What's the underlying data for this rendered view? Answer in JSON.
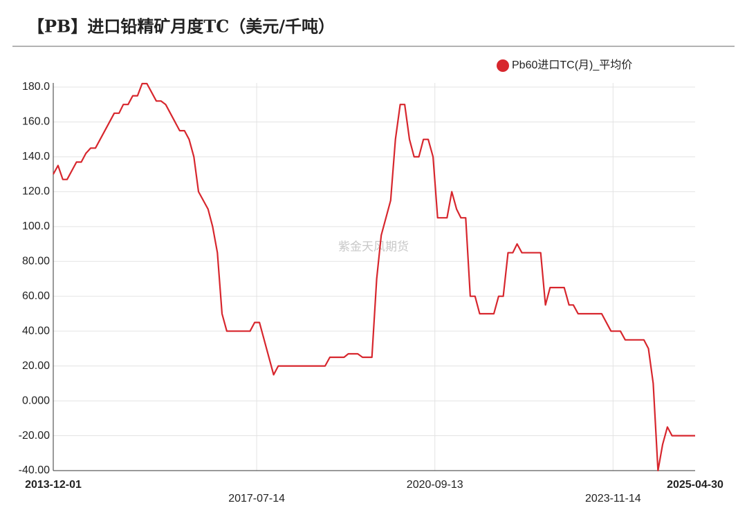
{
  "chart_data": {
    "type": "line",
    "title": "【PB】进口铅精矿月度TC（美元/千吨）",
    "watermark": "紫金天风期货",
    "x": [
      "2013-12-01",
      "2014-01-01",
      "2014-02-01",
      "2014-03-01",
      "2014-05-01",
      "2014-06-01",
      "2014-07-01",
      "2014-08-01",
      "2014-09-01",
      "2015-01-01",
      "2015-02-01",
      "2015-03-01",
      "2015-04-01",
      "2015-05-01",
      "2015-06-01",
      "2015-07-01",
      "2015-08-01",
      "2015-10-01",
      "2015-11-01",
      "2015-12-01",
      "2016-03-01",
      "2016-04-01",
      "2016-05-01",
      "2016-06-01",
      "2016-07-01",
      "2016-09-01",
      "2016-10-01",
      "2016-11-01",
      "2016-12-01",
      "2017-01-01",
      "2017-06-01",
      "2017-07-01",
      "2017-08-01",
      "2017-11-01",
      "2017-12-01",
      "2018-10-01",
      "2018-11-01",
      "2019-02-01",
      "2019-03-01",
      "2019-05-01",
      "2019-06-01",
      "2019-08-01",
      "2019-09-01",
      "2019-10-01",
      "2019-12-01",
      "2020-01-01",
      "2020-02-01",
      "2020-03-01",
      "2020-04-01",
      "2020-05-01",
      "2020-06-01",
      "2020-07-01",
      "2020-08-01",
      "2020-09-01",
      "2020-10-01",
      "2020-12-01",
      "2021-01-01",
      "2021-02-01",
      "2021-03-01",
      "2021-04-01",
      "2021-05-01",
      "2021-06-01",
      "2021-07-01",
      "2021-10-01",
      "2021-11-01",
      "2021-12-01",
      "2022-01-01",
      "2022-02-01",
      "2022-03-01",
      "2022-04-01",
      "2022-08-01",
      "2022-09-01",
      "2022-10-01",
      "2023-01-01",
      "2023-02-01",
      "2023-03-01",
      "2023-04-01",
      "2023-09-01",
      "2023-11-01",
      "2024-01-01",
      "2024-02-01",
      "2024-06-01",
      "2024-07-01",
      "2024-08-01",
      "2024-09-01",
      "2024-10-01",
      "2024-11-01",
      "2024-12-01",
      "2025-04-30"
    ],
    "series": [
      {
        "name": "Pb60进口TC(月)_平均价",
        "color": "#d7262d",
        "values": [
          130,
          135,
          127,
          127,
          137,
          137,
          142,
          145,
          145,
          165,
          165,
          170,
          170,
          175,
          175,
          182,
          182,
          172,
          172,
          170,
          155,
          155,
          150,
          140,
          120,
          110,
          100,
          85,
          50,
          40,
          40,
          45,
          45,
          15,
          20,
          20,
          25,
          25,
          27,
          27,
          25,
          25,
          70,
          95,
          115,
          150,
          170,
          170,
          150,
          140,
          140,
          150,
          150,
          140,
          105,
          105,
          120,
          110,
          105,
          105,
          60,
          60,
          50,
          50,
          60,
          60,
          85,
          85,
          90,
          85,
          85,
          55,
          65,
          65,
          55,
          55,
          50,
          50,
          40,
          40,
          35,
          35,
          30,
          10,
          -40,
          -25,
          -15,
          -20,
          -20
        ]
      }
    ],
    "xlim": [
      "2013-12-01",
      "2025-04-30"
    ],
    "xticks": [
      "2013-12-01",
      "2017-07-14",
      "2020-09-13",
      "2023-11-14",
      "2025-04-30"
    ],
    "ylim": [
      -40,
      180
    ],
    "yticks": [
      {
        "value": 180,
        "label": "180.0"
      },
      {
        "value": 160,
        "label": "160.0"
      },
      {
        "value": 140,
        "label": "140.0"
      },
      {
        "value": 120,
        "label": "120.0"
      },
      {
        "value": 100,
        "label": "100.0"
      },
      {
        "value": 80,
        "label": "80.00"
      },
      {
        "value": 60,
        "label": "60.00"
      },
      {
        "value": 40,
        "label": "40.00"
      },
      {
        "value": 20,
        "label": "20.00"
      },
      {
        "value": 0,
        "label": "0.000"
      },
      {
        "value": -20,
        "label": "-20.00"
      },
      {
        "value": -40,
        "label": "-40.00"
      }
    ],
    "grid": true
  }
}
